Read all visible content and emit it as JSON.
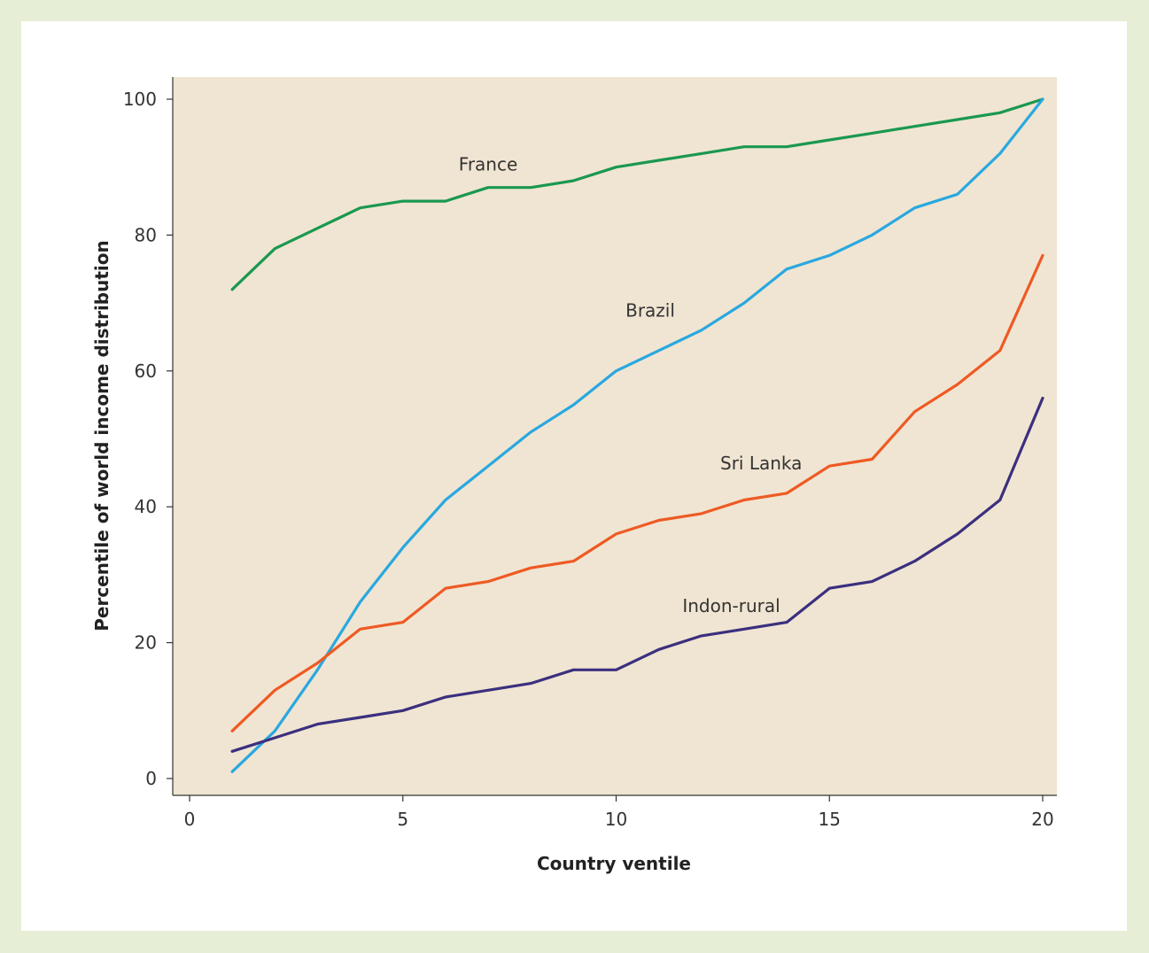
{
  "colors": {
    "page_background": "#e6eed6",
    "plot_background": "#f0e5d2"
  },
  "chart_data": {
    "type": "line",
    "title": "",
    "xlabel": "Country ventile",
    "ylabel": "Percentile of world income distribution",
    "xlim": [
      0,
      20
    ],
    "ylim": [
      0,
      100
    ],
    "xticks": [
      0,
      5,
      10,
      15,
      20
    ],
    "yticks": [
      0,
      20,
      40,
      60,
      80,
      100
    ],
    "grid": false,
    "legend": "none (series labelled directly on the lines)",
    "x": [
      1,
      2,
      3,
      4,
      5,
      6,
      7,
      8,
      9,
      10,
      11,
      12,
      13,
      14,
      15,
      16,
      17,
      18,
      19,
      20
    ],
    "series": [
      {
        "name": "France",
        "color": "#1a9850",
        "values": [
          72,
          78,
          81,
          84,
          85,
          85,
          87,
          87,
          88,
          90,
          91,
          92,
          93,
          93,
          94,
          95,
          96,
          97,
          98,
          100
        ]
      },
      {
        "name": "Brazil",
        "color": "#29a8e0",
        "values": [
          1,
          7,
          16,
          26,
          34,
          41,
          46,
          51,
          55,
          60,
          63,
          66,
          70,
          75,
          77,
          80,
          84,
          86,
          92,
          100
        ]
      },
      {
        "name": "Sri Lanka",
        "color": "#ee5a24",
        "values": [
          7,
          13,
          17,
          22,
          23,
          28,
          29,
          31,
          32,
          36,
          38,
          39,
          41,
          42,
          46,
          47,
          54,
          58,
          63,
          77
        ]
      },
      {
        "name": "Indon-rural",
        "color": "#3b2f7f",
        "values": [
          4,
          6,
          8,
          9,
          10,
          12,
          13,
          14,
          16,
          16,
          19,
          21,
          22,
          23,
          28,
          29,
          32,
          36,
          41,
          56
        ]
      }
    ]
  }
}
